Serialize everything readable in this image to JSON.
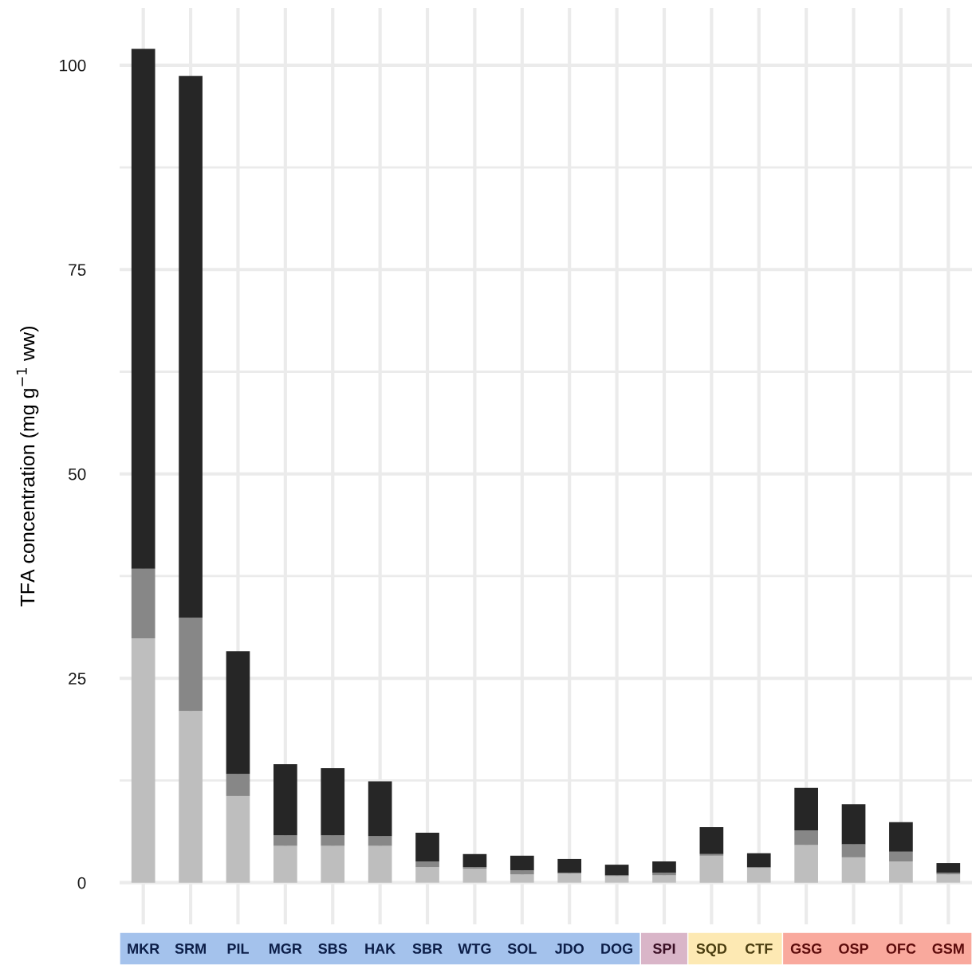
{
  "chart_data": {
    "type": "bar",
    "stacked": true,
    "ylabel": "TFA concentration (mg g$^{−1}$ ww)",
    "categories": [
      "MKR",
      "SRM",
      "PIL",
      "MGR",
      "SBS",
      "HAK",
      "SBR",
      "WTG",
      "SOL",
      "JDO",
      "DOG",
      "SPI",
      "SQD",
      "CTF",
      "GSG",
      "OSP",
      "OFC",
      "GSM"
    ],
    "series": [
      {
        "color": "#bebebe",
        "values": [
          29.9,
          21.0,
          10.6,
          4.5,
          4.5,
          4.5,
          1.9,
          1.7,
          1.0,
          1.1,
          0.8,
          0.9,
          3.3,
          1.8,
          4.6,
          3.1,
          2.6,
          1.0
        ]
      },
      {
        "color": "#878787",
        "values": [
          8.5,
          11.4,
          2.7,
          1.3,
          1.3,
          1.2,
          0.7,
          0.2,
          0.5,
          0.1,
          0.1,
          0.3,
          0.2,
          0.1,
          1.8,
          1.6,
          1.2,
          0.2
        ]
      },
      {
        "color": "#262626",
        "values": [
          63.6,
          66.3,
          15.0,
          8.7,
          8.2,
          6.7,
          3.5,
          1.6,
          1.8,
          1.7,
          1.3,
          1.4,
          3.3,
          1.7,
          5.2,
          4.9,
          3.6,
          1.2
        ]
      }
    ],
    "ylim": [
      -5.1,
      107
    ],
    "yticks": [
      0,
      {
        "value": 12.5,
        "label": null
      },
      25,
      {
        "value": 37.5,
        "label": null
      },
      50,
      {
        "value": 62.5,
        "label": null
      },
      75,
      {
        "value": 87.5,
        "label": null
      },
      100
    ],
    "grid": true
  }
}
